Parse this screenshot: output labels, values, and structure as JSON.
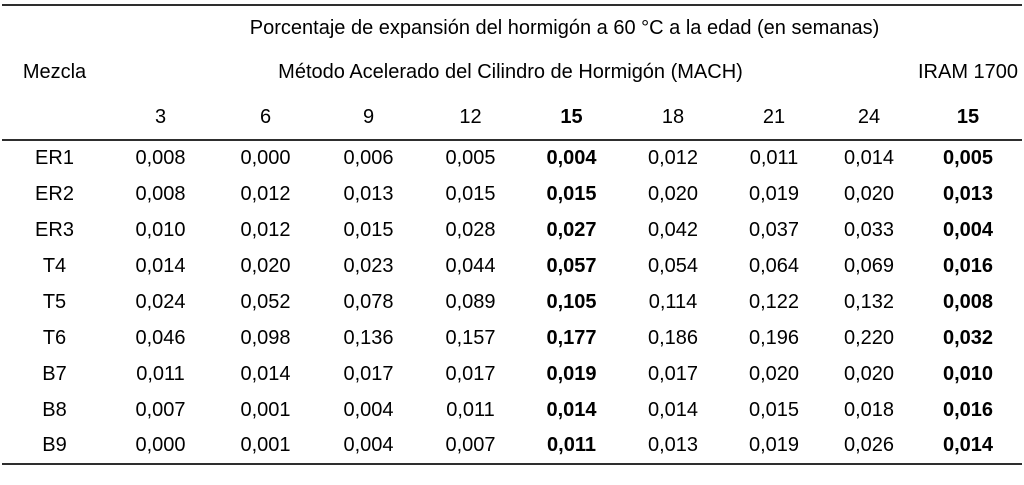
{
  "table": {
    "title": "Porcentaje de expansión del hormigón a 60 °C a la edad (en semanas)",
    "mezcla_header": "Mezcla",
    "mach_header": "Método Acelerado del Cilindro de Hormigón (MACH)",
    "iram_header": "IRAM 1700",
    "week_headers": [
      "3",
      "6",
      "9",
      "12",
      "15",
      "18",
      "21",
      "24"
    ],
    "iram_week_header": "15",
    "bold_week_index": 4,
    "rows": [
      {
        "mezcla": "ER1",
        "values": [
          "0,008",
          "0,000",
          "0,006",
          "0,005",
          "0,004",
          "0,012",
          "0,011",
          "0,014"
        ],
        "iram": "0,005"
      },
      {
        "mezcla": "ER2",
        "values": [
          "0,008",
          "0,012",
          "0,013",
          "0,015",
          "0,015",
          "0,020",
          "0,019",
          "0,020"
        ],
        "iram": "0,013"
      },
      {
        "mezcla": "ER3",
        "values": [
          "0,010",
          "0,012",
          "0,015",
          "0,028",
          "0,027",
          "0,042",
          "0,037",
          "0,033"
        ],
        "iram": "0,004"
      },
      {
        "mezcla": "T4",
        "values": [
          "0,014",
          "0,020",
          "0,023",
          "0,044",
          "0,057",
          "0,054",
          "0,064",
          "0,069"
        ],
        "iram": "0,016"
      },
      {
        "mezcla": "T5",
        "values": [
          "0,024",
          "0,052",
          "0,078",
          "0,089",
          "0,105",
          "0,114",
          "0,122",
          "0,132"
        ],
        "iram": "0,008"
      },
      {
        "mezcla": "T6",
        "values": [
          "0,046",
          "0,098",
          "0,136",
          "0,157",
          "0,177",
          "0,186",
          "0,196",
          "0,220"
        ],
        "iram": "0,032"
      },
      {
        "mezcla": "B7",
        "values": [
          "0,011",
          "0,014",
          "0,017",
          "0,017",
          "0,019",
          "0,017",
          "0,020",
          "0,020"
        ],
        "iram": "0,010"
      },
      {
        "mezcla": "B8",
        "values": [
          "0,007",
          "0,001",
          "0,004",
          "0,011",
          "0,014",
          "0,014",
          "0,015",
          "0,018"
        ],
        "iram": "0,016"
      },
      {
        "mezcla": "B9",
        "values": [
          "0,000",
          "0,001",
          "0,004",
          "0,007",
          "0,011",
          "0,013",
          "0,019",
          "0,026"
        ],
        "iram": "0,014"
      }
    ],
    "rule_color": "#2e2e2e"
  }
}
